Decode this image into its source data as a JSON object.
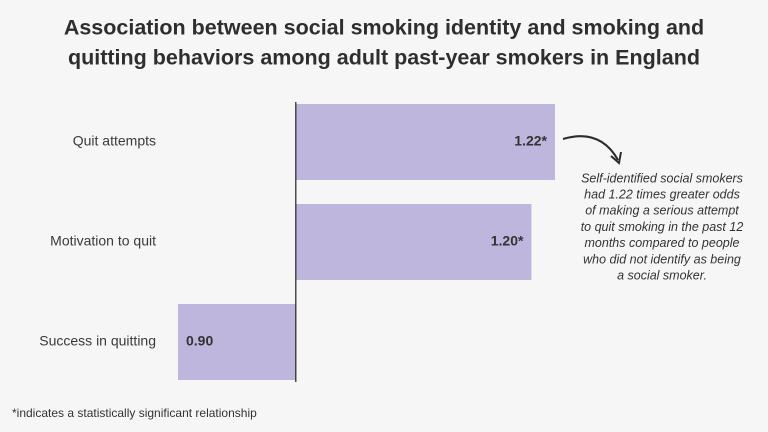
{
  "chart_data": {
    "type": "bar",
    "orientation": "horizontal",
    "title": [
      "Association between social smoking identity and smoking and",
      "quitting behaviors among adult past-year smokers in England"
    ],
    "categories": [
      "Quit attempts",
      "Motivation to quit",
      "Success in quitting"
    ],
    "values": [
      1.22,
      1.2,
      0.9
    ],
    "value_labels": [
      "1.22*",
      "1.20*",
      "0.90"
    ],
    "color": "#beb6dd",
    "xlim": [
      0.9,
      1.22
    ],
    "baseline": 1,
    "annotation": [
      "Self-identified social smokers",
      "had 1.22 times greater odds",
      "of making a serious attempt",
      "to quit smoking in the past 12",
      "months compared to people",
      "who did not identify as being",
      "a social smoker."
    ],
    "footnote": "*indicates a statistically significant relationship"
  }
}
